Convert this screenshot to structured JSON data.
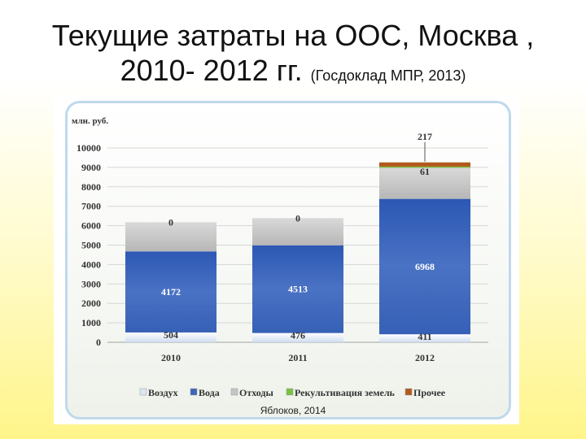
{
  "title": {
    "line1": "Текущие затраты на ООС, Москва ,",
    "line2": "2010- 2012 гг.",
    "source": "(Госдоклад МПР, 2013)"
  },
  "credit": "Яблоков, 2014",
  "chart_data": {
    "type": "bar",
    "stacked": true,
    "ylabel": "млн. руб.",
    "ylim": [
      0,
      10000
    ],
    "yticks": [
      0,
      1000,
      2000,
      3000,
      4000,
      5000,
      6000,
      7000,
      8000,
      9000,
      10000
    ],
    "grid": true,
    "legend_position": "bottom",
    "categories": [
      "2010",
      "2011",
      "2012"
    ],
    "series": [
      {
        "name": "Воздух",
        "color": "#dbe6f4",
        "values": [
          504,
          476,
          411
        ],
        "labels": [
          "504",
          "476",
          "411"
        ]
      },
      {
        "name": "Вода",
        "color": "#3f66b8",
        "values": [
          4172,
          4513,
          6968
        ],
        "labels": [
          "4172",
          "4513",
          "6968"
        ]
      },
      {
        "name": "Отходы",
        "color": "#c4c4c4",
        "values": [
          1500,
          1400,
          1600
        ],
        "labels": [
          null,
          null,
          null
        ]
      },
      {
        "name": "Рекультивация земель",
        "color": "#7ac143",
        "values": [
          0,
          0,
          61
        ],
        "labels": [
          "0",
          "0",
          "61"
        ]
      },
      {
        "name": "Прочее",
        "color": "#b05a1e",
        "values": [
          0,
          0,
          217
        ],
        "labels": [
          null,
          null,
          "217"
        ]
      }
    ]
  }
}
